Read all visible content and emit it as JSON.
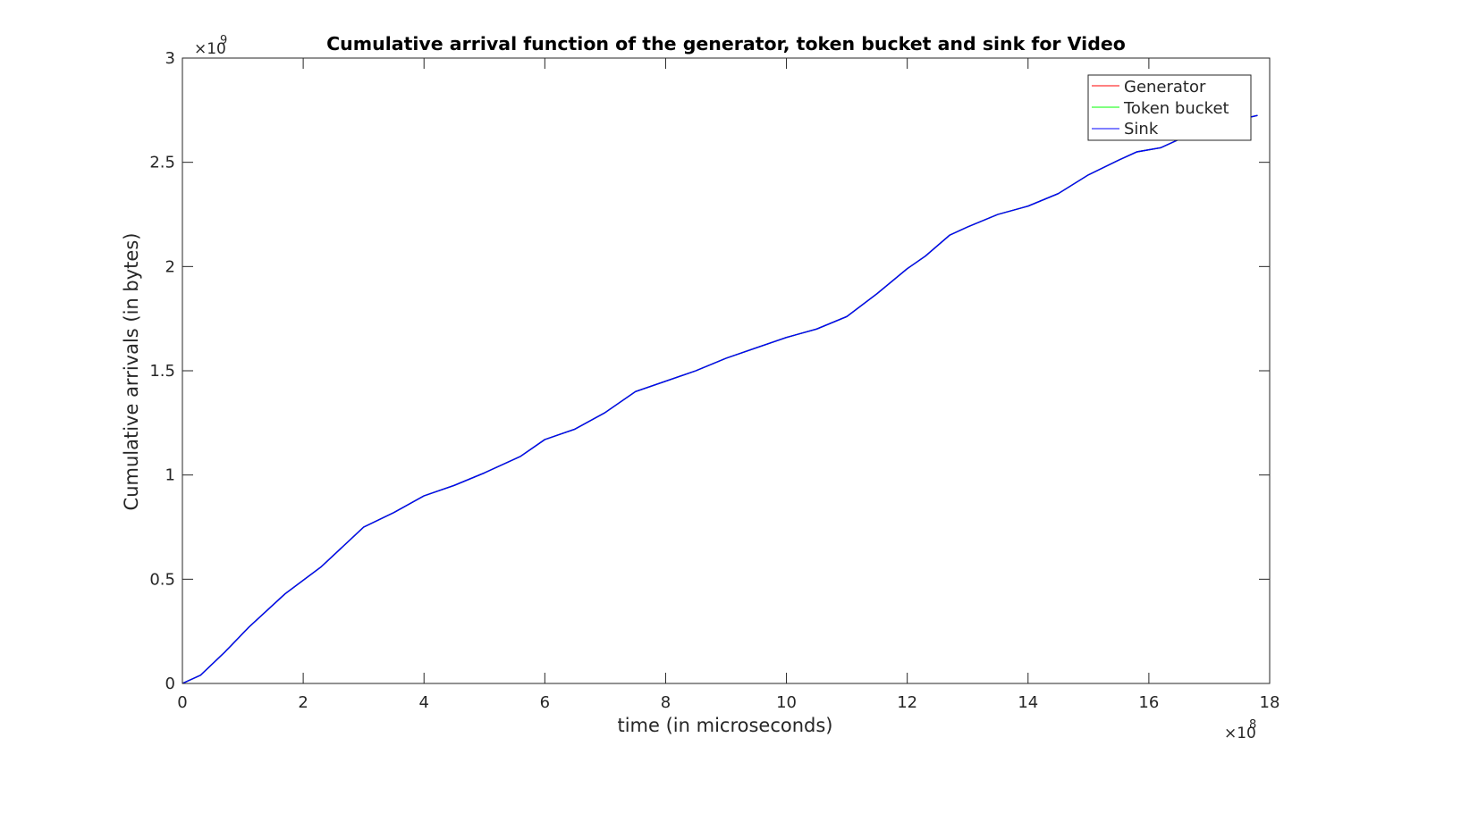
{
  "chart_data": {
    "type": "line",
    "title": "Cumulative arrival function of the generator, token bucket and sink for Video",
    "xlabel": "time (in microseconds)",
    "ylabel": "Cumulative arrivals (in bytes)",
    "x_exponent_label": "×10",
    "x_exponent": "8",
    "y_exponent_label": "×10",
    "y_exponent": "9",
    "x_unit_scale": 100000000,
    "y_unit_scale": 1000000000,
    "xlim": [
      0,
      1800000000
    ],
    "ylim": [
      0,
      3000000000
    ],
    "x_ticks": [
      0,
      200000000,
      400000000,
      600000000,
      800000000,
      1000000000,
      1200000000,
      1400000000,
      1600000000,
      1800000000
    ],
    "x_tick_labels": [
      "0",
      "2",
      "4",
      "6",
      "8",
      "10",
      "12",
      "14",
      "16",
      "18"
    ],
    "y_ticks": [
      0,
      500000000,
      1000000000,
      1500000000,
      2000000000,
      2500000000,
      3000000000
    ],
    "y_tick_labels": [
      "0",
      "0.5",
      "1",
      "1.5",
      "2",
      "2.5",
      "3"
    ],
    "grid": false,
    "legend_position": "top-right",
    "series": [
      {
        "name": "Generator",
        "color": "#ff0000",
        "x": [
          0,
          30000000,
          70000000,
          110000000,
          170000000,
          230000000,
          300000000,
          350000000,
          400000000,
          450000000,
          500000000,
          560000000,
          600000000,
          650000000,
          700000000,
          750000000,
          800000000,
          850000000,
          900000000,
          950000000,
          1000000000,
          1050000000,
          1100000000,
          1150000000,
          1200000000,
          1230000000,
          1270000000,
          1300000000,
          1350000000,
          1400000000,
          1450000000,
          1500000000,
          1550000000,
          1580000000,
          1620000000,
          1650000000,
          1700000000,
          1730000000,
          1765000000,
          1780000000
        ],
        "y": [
          0,
          40000000,
          150000000,
          270000000,
          430000000,
          560000000,
          750000000,
          820000000,
          900000000,
          950000000,
          1010000000,
          1090000000,
          1170000000,
          1220000000,
          1300000000,
          1400000000,
          1450000000,
          1500000000,
          1560000000,
          1610000000,
          1660000000,
          1700000000,
          1760000000,
          1870000000,
          1990000000,
          2050000000,
          2150000000,
          2190000000,
          2250000000,
          2290000000,
          2350000000,
          2440000000,
          2510000000,
          2550000000,
          2570000000,
          2610000000,
          2660000000,
          2700000000,
          2715000000,
          2725000000
        ]
      },
      {
        "name": "Token bucket",
        "color": "#00ff00",
        "x": [
          0,
          30000000,
          70000000,
          110000000,
          170000000,
          230000000,
          300000000,
          350000000,
          400000000,
          450000000,
          500000000,
          560000000,
          600000000,
          650000000,
          700000000,
          750000000,
          800000000,
          850000000,
          900000000,
          950000000,
          1000000000,
          1050000000,
          1100000000,
          1150000000,
          1200000000,
          1230000000,
          1270000000,
          1300000000,
          1350000000,
          1400000000,
          1450000000,
          1500000000,
          1550000000,
          1580000000,
          1620000000,
          1650000000,
          1700000000,
          1730000000,
          1765000000,
          1780000000
        ],
        "y": [
          0,
          40000000,
          150000000,
          270000000,
          430000000,
          560000000,
          750000000,
          820000000,
          900000000,
          950000000,
          1010000000,
          1090000000,
          1170000000,
          1220000000,
          1300000000,
          1400000000,
          1450000000,
          1500000000,
          1560000000,
          1610000000,
          1660000000,
          1700000000,
          1760000000,
          1870000000,
          1990000000,
          2050000000,
          2150000000,
          2190000000,
          2250000000,
          2290000000,
          2350000000,
          2440000000,
          2510000000,
          2550000000,
          2570000000,
          2610000000,
          2660000000,
          2700000000,
          2715000000,
          2725000000
        ]
      },
      {
        "name": "Sink",
        "color": "#0000ff",
        "x": [
          0,
          30000000,
          70000000,
          110000000,
          170000000,
          230000000,
          300000000,
          350000000,
          400000000,
          450000000,
          500000000,
          560000000,
          600000000,
          650000000,
          700000000,
          750000000,
          800000000,
          850000000,
          900000000,
          950000000,
          1000000000,
          1050000000,
          1100000000,
          1150000000,
          1200000000,
          1230000000,
          1270000000,
          1300000000,
          1350000000,
          1400000000,
          1450000000,
          1500000000,
          1550000000,
          1580000000,
          1620000000,
          1650000000,
          1700000000,
          1730000000,
          1765000000,
          1780000000
        ],
        "y": [
          0,
          40000000,
          150000000,
          270000000,
          430000000,
          560000000,
          750000000,
          820000000,
          900000000,
          950000000,
          1010000000,
          1090000000,
          1170000000,
          1220000000,
          1300000000,
          1400000000,
          1450000000,
          1500000000,
          1560000000,
          1610000000,
          1660000000,
          1700000000,
          1760000000,
          1870000000,
          1990000000,
          2050000000,
          2150000000,
          2190000000,
          2250000000,
          2290000000,
          2350000000,
          2440000000,
          2510000000,
          2550000000,
          2570000000,
          2610000000,
          2660000000,
          2700000000,
          2715000000,
          2725000000
        ]
      }
    ]
  }
}
